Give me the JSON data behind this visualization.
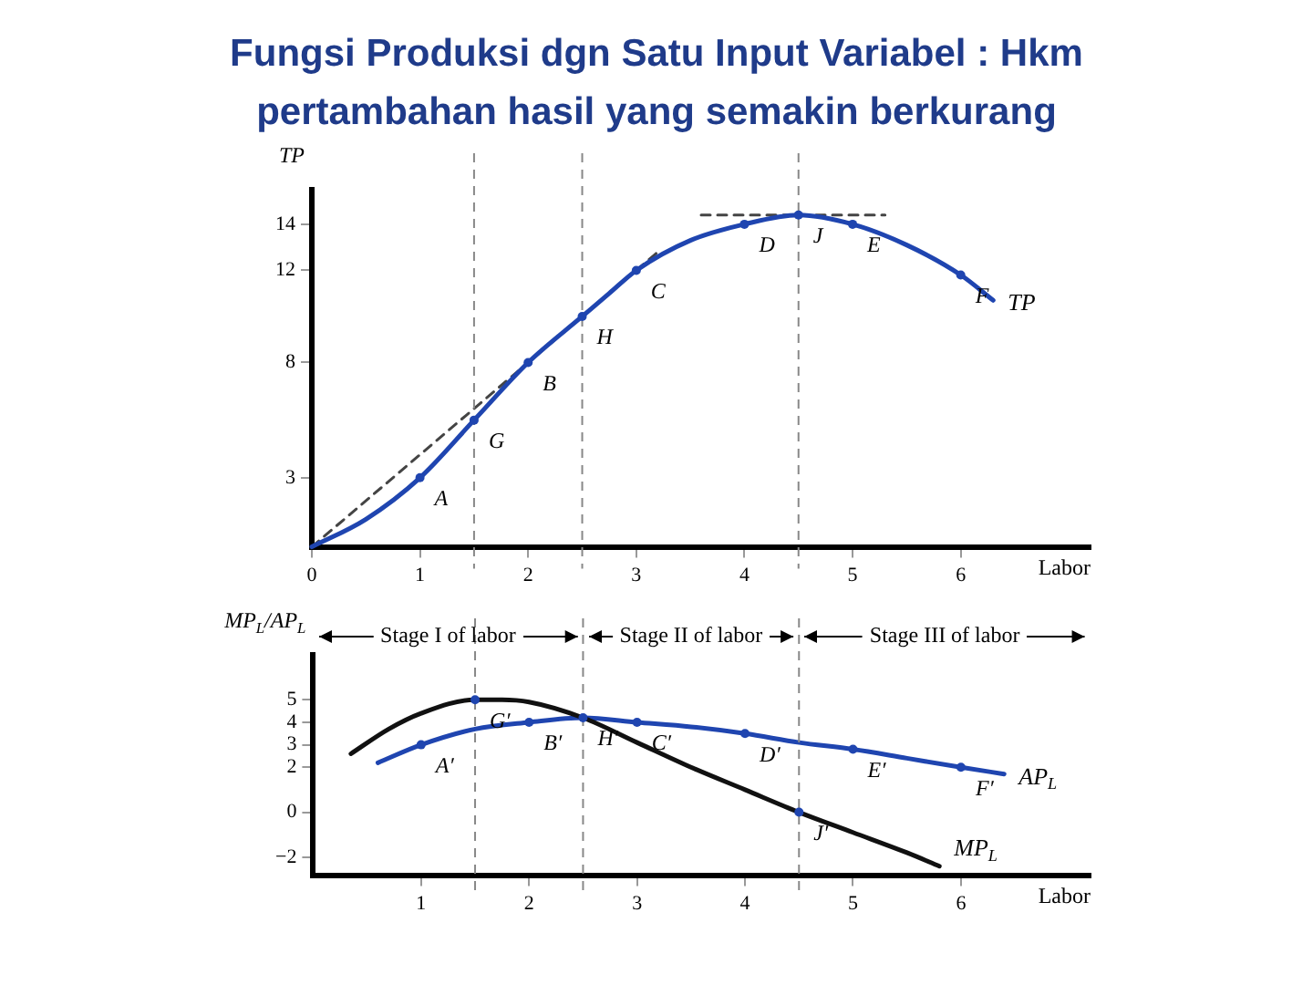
{
  "chart_data": [
    {
      "type": "line",
      "title": "Fungsi Produksi dgn Satu Input Variabel : Hkm",
      "subtitle": "pertambahan hasil yang semakin berkurang",
      "xlabel": "Labor",
      "ylabel": "TP",
      "xlim": [
        0,
        7.2
      ],
      "xticks": [
        0,
        1,
        2,
        3,
        4,
        5,
        6
      ],
      "ylim": [
        0,
        15.5
      ],
      "yticks": [
        3,
        8,
        12,
        14
      ],
      "grid": false,
      "legend": false,
      "series": [
        {
          "name": "TP",
          "color": "#1f45b0",
          "x": [
            0,
            0.5,
            1,
            1.5,
            2,
            2.5,
            2.75,
            3,
            3.5,
            4,
            4.5,
            5,
            5.5,
            6,
            6.3
          ],
          "values": [
            0,
            1.2,
            3,
            5.5,
            8,
            10,
            11,
            12,
            13.3,
            14,
            14.4,
            14,
            13.1,
            11.8,
            10.7
          ]
        },
        {
          "color": "#444444",
          "line_style": "dashed",
          "x": [
            0,
            3.2
          ],
          "values": [
            0,
            12.8
          ]
        },
        {
          "color": "#444444",
          "line_style": "dashed",
          "x": [
            3.6,
            5.3
          ],
          "values": [
            14.4,
            14.4
          ]
        }
      ],
      "ref_lines": [
        {
          "axis": "x",
          "value": 1.5
        },
        {
          "axis": "x",
          "value": 2.5
        },
        {
          "axis": "x",
          "value": 4.5
        }
      ],
      "annotations": [
        {
          "text": "A",
          "x": 1,
          "y": 3
        },
        {
          "text": "G",
          "x": 1.5,
          "y": 5.5
        },
        {
          "text": "B",
          "x": 2,
          "y": 8
        },
        {
          "text": "H",
          "x": 2.5,
          "y": 10
        },
        {
          "text": "C",
          "x": 3,
          "y": 12
        },
        {
          "text": "D",
          "x": 4,
          "y": 14
        },
        {
          "text": "J",
          "x": 4.5,
          "y": 14.4
        },
        {
          "text": "E",
          "x": 5,
          "y": 14
        },
        {
          "text": "F",
          "x": 6,
          "y": 11.8
        }
      ]
    },
    {
      "type": "line",
      "xlabel": "Labor",
      "ylabel": "MP$_{L}$/AP$_{L}$",
      "xlim": [
        0,
        7.2
      ],
      "xticks": [
        1,
        2,
        3,
        4,
        5,
        6
      ],
      "ylim": [
        -2.8,
        7
      ],
      "yticks": [
        {
          "value": -2,
          "label": "−2"
        },
        0,
        2,
        3,
        4,
        5
      ],
      "grid": false,
      "legend": false,
      "series": [
        {
          "name": "MP$_{L}$",
          "color": "#111111",
          "x": [
            0.35,
            0.7,
            1,
            1.5,
            1.75,
            2,
            2.5,
            3,
            3.5,
            4,
            4.5,
            5,
            5.5,
            5.8
          ],
          "values": [
            2.6,
            3.7,
            4.4,
            5,
            5,
            4.9,
            4.2,
            3.1,
            2,
            1,
            0,
            -0.9,
            -1.8,
            -2.4
          ]
        },
        {
          "name": "AP$_{L}$",
          "color": "#1f45b0",
          "x": [
            0.6,
            1,
            1.5,
            2,
            2.5,
            3,
            3.5,
            4,
            4.5,
            5,
            5.5,
            6,
            6.4
          ],
          "values": [
            2.2,
            3,
            3.7,
            4,
            4.2,
            4,
            3.8,
            3.5,
            3.1,
            2.8,
            2.4,
            2,
            1.7
          ]
        }
      ],
      "ref_lines": [
        {
          "axis": "x",
          "value": 1.5
        },
        {
          "axis": "x",
          "value": 2.5
        },
        {
          "axis": "x",
          "value": 4.5
        }
      ],
      "annotations": [
        {
          "text": "A′",
          "x": 1,
          "y": 3
        },
        {
          "text": "G′",
          "x": 1.5,
          "y": 5
        },
        {
          "text": "B′",
          "x": 2,
          "y": 4
        },
        {
          "text": "H′",
          "x": 2.5,
          "y": 4.2
        },
        {
          "text": "C′",
          "x": 3,
          "y": 4
        },
        {
          "text": "D′",
          "x": 4,
          "y": 3.5
        },
        {
          "text": "E′",
          "x": 5,
          "y": 2.8
        },
        {
          "text": "F′",
          "x": 6,
          "y": 2
        },
        {
          "text": "J′",
          "x": 4.5,
          "y": 0
        },
        "Stage I of labor",
        "Stage II of labor",
        "Stage III of labor"
      ]
    }
  ]
}
